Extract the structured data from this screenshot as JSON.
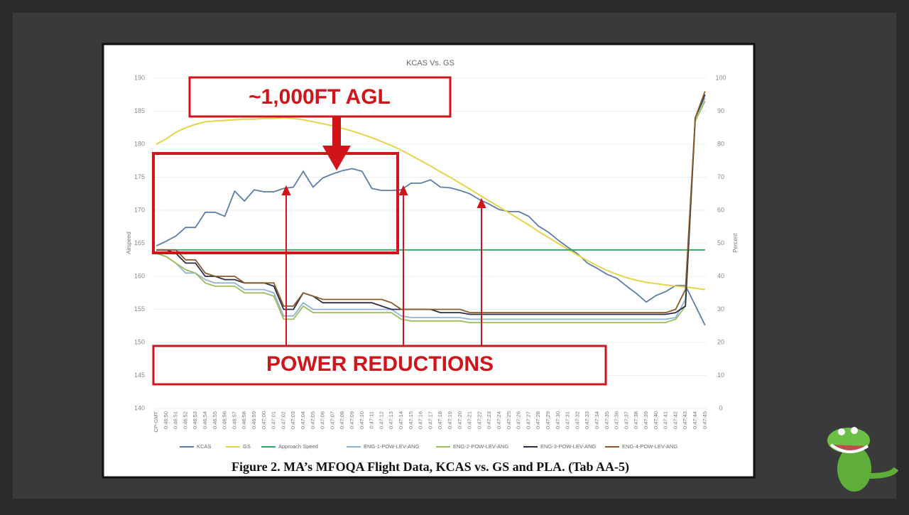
{
  "chart_data": {
    "type": "line",
    "title": "KCAS Vs. GS",
    "caption": "Figure 2. MA’s MFOQA Flight Data, KCAS vs. GS and PLA. (Tab AA-5)",
    "ylabel": "Airspeed",
    "y2label": "Percent",
    "annotations": [
      "~1,000FT AGL",
      "POWER REDUCTIONS"
    ],
    "categories": [
      "CP-GMT",
      "0:46:50",
      "0:46:51",
      "0:46:52",
      "0:46:53",
      "0:46:54",
      "0:46:55",
      "0:46:56",
      "0:46:57",
      "0:46:58",
      "0:46:59",
      "0:47:00",
      "0:47:01",
      "0:47:02",
      "0:47:03",
      "0:47:04",
      "0:47:05",
      "0:47:06",
      "0:47:07",
      "0:47:08",
      "0:47:09",
      "0:47:10",
      "0:47:11",
      "0:47:12",
      "0:47:13",
      "0:47:14",
      "0:47:15",
      "0:47:16",
      "0:47:17",
      "0:47:18",
      "0:47:19",
      "0:47:20",
      "0:47:21",
      "0:47:22",
      "0:47:23",
      "0:47:24",
      "0:47:25",
      "0:47:26",
      "0:47:27",
      "0:47:28",
      "0:47:29",
      "0:47:30",
      "0:47:31",
      "0:47:32",
      "0:47:33",
      "0:47:34",
      "0:47:35",
      "0:47:36",
      "0:47:37",
      "0:47:38",
      "0:47:39",
      "0:47:40",
      "0:47:41",
      "0:47:42",
      "0:47:43",
      "0:47:44",
      "0:47:45"
    ],
    "ylim": [
      140,
      190
    ],
    "yticks": [
      140,
      145,
      150,
      155,
      160,
      165,
      170,
      175,
      180,
      185,
      190
    ],
    "y2lim": [
      0,
      100
    ],
    "y2ticks": [
      0,
      10,
      20,
      30,
      40,
      50,
      60,
      70,
      80,
      90,
      100
    ],
    "grid": true,
    "legend": "bottom",
    "series": [
      {
        "name": "KCAS",
        "color": "#5b7fa8",
        "values": [
          164.6,
          165.3,
          166.1,
          167.4,
          167.4,
          169.7,
          169.7,
          169.1,
          172.9,
          171.4,
          173.1,
          172.8,
          172.8,
          173.3,
          173.5,
          175.9,
          173.5,
          174.9,
          175.5,
          176.0,
          176.3,
          175.9,
          173.3,
          173.0,
          173.0,
          173.1,
          174.1,
          174.1,
          174.6,
          173.5,
          173.4,
          173.0,
          172.5,
          171.6,
          170.9,
          170.1,
          169.8,
          169.8,
          169.1,
          167.6,
          166.7,
          165.5,
          164.4,
          163.4,
          162.0,
          161.2,
          160.3,
          159.7,
          158.5,
          157.4,
          156.1,
          157.1,
          157.7,
          158.6,
          158.6,
          155.6,
          152.6
        ]
      },
      {
        "name": "GS",
        "color": "#e6d44a",
        "values": [
          180.0,
          180.8,
          181.8,
          182.5,
          183.0,
          183.4,
          183.5,
          183.6,
          183.7,
          183.8,
          183.8,
          183.9,
          183.9,
          184.0,
          183.9,
          183.7,
          183.4,
          183.1,
          182.8,
          182.4,
          182.0,
          181.5,
          181.0,
          180.4,
          179.8,
          179.1,
          178.3,
          177.5,
          176.7,
          175.8,
          175.0,
          174.1,
          173.2,
          172.3,
          171.4,
          170.5,
          169.6,
          168.7,
          167.8,
          166.8,
          165.9,
          165.0,
          164.1,
          163.2,
          162.4,
          161.6,
          160.9,
          160.3,
          159.8,
          159.4,
          159.1,
          158.9,
          158.7,
          158.5,
          158.4,
          158.2,
          158.0
        ]
      },
      {
        "name": "Approach Speed",
        "color": "#2aa866",
        "values": [
          164,
          164,
          164,
          164,
          164,
          164,
          164,
          164,
          164,
          164,
          164,
          164,
          164,
          164,
          164,
          164,
          164,
          164,
          164,
          164,
          164,
          164,
          164,
          164,
          164,
          164,
          164,
          164,
          164,
          164,
          164,
          164,
          164,
          164,
          164,
          164,
          164,
          164,
          164,
          164,
          164,
          164,
          164,
          164,
          164,
          164,
          164,
          164,
          164,
          164,
          164,
          164,
          164,
          164,
          164,
          164,
          164
        ]
      },
      {
        "name": "ENG-1-POW-LEV-ANG",
        "color": "#8fb3d6",
        "axis": "y2",
        "values": [
          47,
          46,
          44,
          41,
          41,
          39,
          38,
          38,
          38,
          36,
          36,
          36,
          35,
          28,
          28,
          32,
          30,
          30,
          30,
          30,
          30,
          30,
          30,
          30,
          30,
          28,
          27.5,
          27.5,
          27.5,
          27.5,
          27.5,
          27.5,
          27,
          27,
          27,
          27,
          27,
          27,
          27,
          27,
          27,
          27,
          27,
          27,
          27,
          27,
          27,
          27,
          27,
          27,
          27,
          27,
          27,
          27.5,
          33,
          88,
          94
        ]
      },
      {
        "name": "ENG-2-POW-LEV-ANG",
        "color": "#9bbf5c",
        "axis": "y2",
        "values": [
          47,
          46,
          44,
          42,
          41,
          38,
          37,
          37,
          37,
          35,
          35,
          35,
          34,
          27,
          27,
          31,
          29,
          29,
          29,
          29,
          29,
          29,
          29,
          29,
          29,
          27,
          26.5,
          26.5,
          26.5,
          26.5,
          26.5,
          26.5,
          26,
          26,
          26,
          26,
          26,
          26,
          26,
          26,
          26,
          26,
          26,
          26,
          26,
          26,
          26,
          26,
          26,
          26,
          26,
          26,
          26,
          27,
          31,
          87,
          93
        ]
      },
      {
        "name": "ENG-3-POW-LEV-ANG",
        "color": "#2b2f45",
        "axis": "y2",
        "values": [
          48,
          48,
          47,
          44,
          44,
          40,
          40,
          39,
          39,
          38,
          38,
          38,
          37,
          30,
          30,
          35,
          34,
          32,
          32,
          32,
          32,
          32,
          32,
          31,
          30,
          30,
          30,
          30,
          30,
          29,
          29,
          29,
          28.5,
          28.5,
          28.5,
          28.5,
          28.5,
          28.5,
          28.5,
          28.5,
          28.5,
          28.5,
          28.5,
          28.5,
          28.5,
          28.5,
          28.5,
          28.5,
          28.5,
          28.5,
          28.5,
          28.5,
          28.5,
          29,
          31,
          88,
          95
        ]
      },
      {
        "name": "ENG-4-POW-LEV-ANG",
        "color": "#8a5a2b",
        "axis": "y2",
        "values": [
          48,
          48,
          48,
          45,
          45,
          41,
          40,
          40,
          40,
          38,
          38,
          38,
          38,
          31,
          31,
          35,
          34,
          33,
          33,
          33,
          33,
          33,
          33,
          33,
          32,
          30,
          30,
          30,
          30,
          30,
          30,
          30,
          29,
          29,
          29,
          29,
          29,
          29,
          29,
          29,
          29,
          29,
          29,
          29,
          29,
          29,
          29,
          29,
          29,
          29,
          29,
          29,
          29,
          30,
          36,
          88,
          96
        ]
      }
    ]
  }
}
